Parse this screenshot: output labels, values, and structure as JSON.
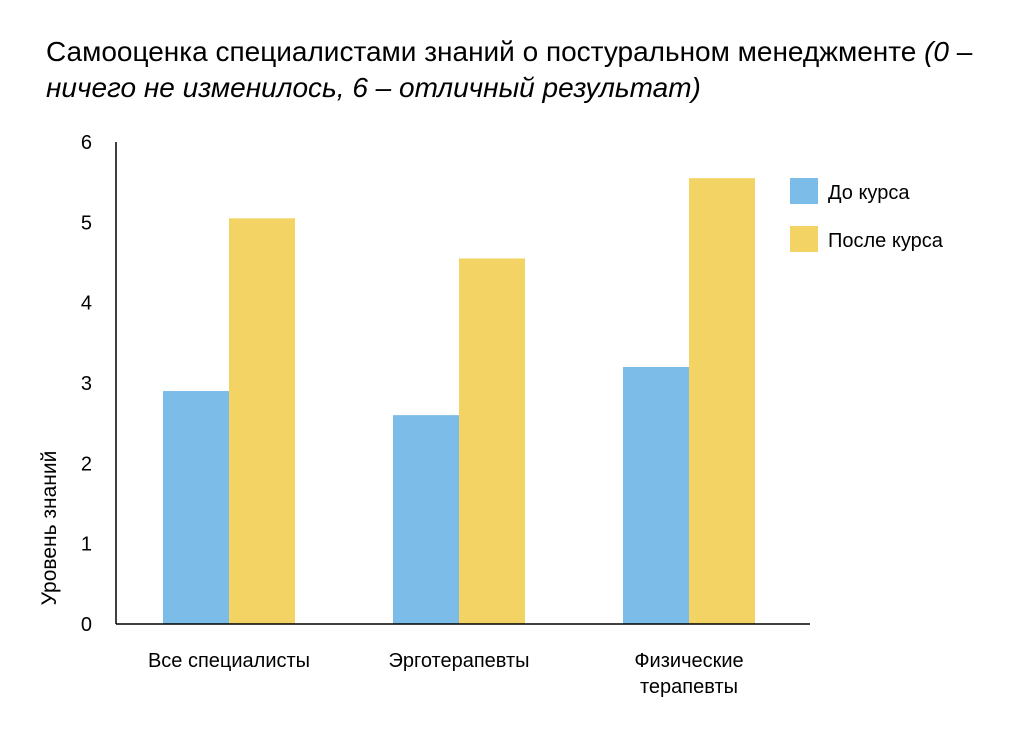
{
  "chart_data": {
    "type": "bar",
    "title": "Самооценка специалистами знаний о постуральном менеджменте",
    "subtitle": "(0 – ничего не изменилось, 6 – отличный результат)",
    "xlabel": "",
    "ylabel": "Уровень знаний",
    "ylim": [
      0,
      6
    ],
    "yticks": [
      "0",
      "1",
      "2",
      "3",
      "4",
      "5",
      "6"
    ],
    "categories": [
      [
        "Все специалисты"
      ],
      [
        "Эрготерапевты"
      ],
      [
        "Физические",
        "терапевты"
      ]
    ],
    "series": [
      {
        "name": "До курса",
        "color": "#7bbce9",
        "values": [
          2.9,
          2.6,
          3.2
        ]
      },
      {
        "name": "После курса",
        "color": "#f2d364",
        "values": [
          5.05,
          4.55,
          5.55
        ]
      }
    ],
    "legend": "right",
    "grid": false
  }
}
